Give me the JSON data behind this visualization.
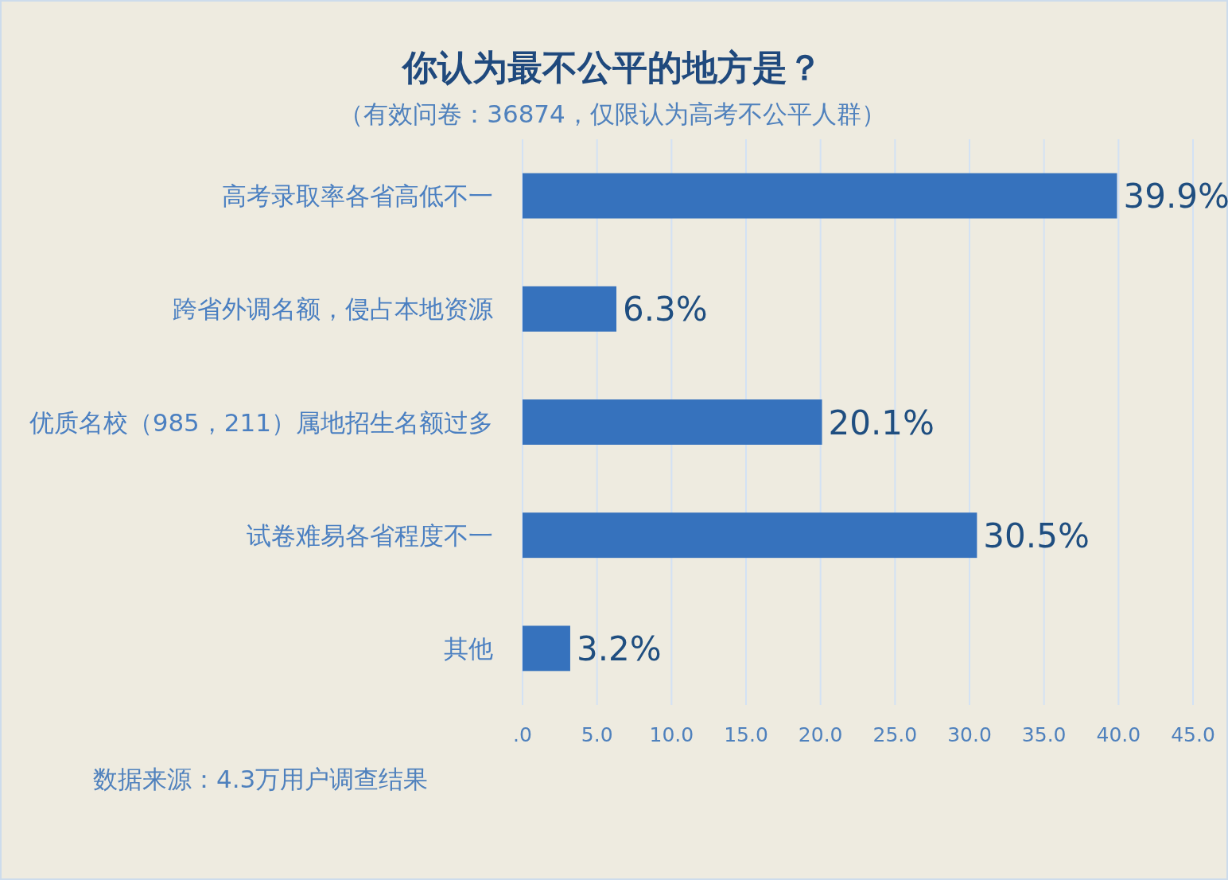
{
  "chart_data": {
    "type": "bar",
    "orientation": "horizontal",
    "title": "你认为最不公平的地方是？",
    "subtitle": "（有效问卷：36874，仅限认为高考不公平人群）",
    "categories": [
      "高考录取率各省高低不一",
      "跨省外调名额，侵占本地资源",
      "优质名校（985，211）属地招生名额过多",
      "试卷难易各省程度不一",
      "其他"
    ],
    "values": [
      39.9,
      6.3,
      20.1,
      30.5,
      3.2
    ],
    "value_labels": [
      "39.9%",
      "6.3%",
      "20.1%",
      "30.5%",
      "3.2%"
    ],
    "color": "#3672bd",
    "xlim": [
      0,
      45
    ],
    "xticks": [
      {
        "value": 0,
        "label": ".0"
      },
      {
        "value": 5,
        "label": "5.0"
      },
      {
        "value": 10,
        "label": "10.0"
      },
      {
        "value": 15,
        "label": "15.0"
      },
      {
        "value": 20,
        "label": "20.0"
      },
      {
        "value": 25,
        "label": "25.0"
      },
      {
        "value": 30,
        "label": "30.0"
      },
      {
        "value": 35,
        "label": "35.0"
      },
      {
        "value": 40,
        "label": "40.0"
      },
      {
        "value": 45,
        "label": "45.0"
      }
    ],
    "grid": "x",
    "annotations": [
      "数据来源：4.3万用户调查结果"
    ]
  }
}
